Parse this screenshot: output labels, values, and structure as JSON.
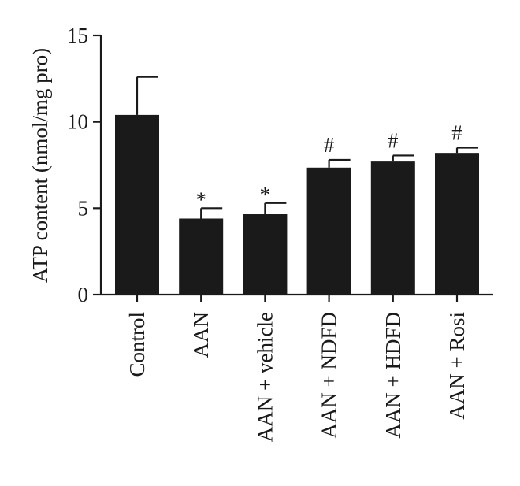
{
  "chart_data": {
    "type": "bar",
    "title": "",
    "xlabel": "",
    "ylabel": "ATP content (nmol/mg pro)",
    "ylim": [
      0,
      15
    ],
    "yticks": [
      0,
      5,
      10,
      15
    ],
    "grid": false,
    "categories": [
      "Control",
      "AAN",
      "AAN + vehicle",
      "AAN + NDFD",
      "AAN + HDFD",
      "AAN + Rosi"
    ],
    "values": [
      10.4,
      4.4,
      4.65,
      7.35,
      7.7,
      8.2
    ],
    "errors": [
      2.2,
      0.6,
      0.65,
      0.45,
      0.35,
      0.3
    ],
    "annotations": [
      "",
      "*",
      "*",
      "#",
      "#",
      "#"
    ],
    "colors": {
      "bar": "#1a1a1a",
      "axis": "#1a1a1a"
    }
  }
}
